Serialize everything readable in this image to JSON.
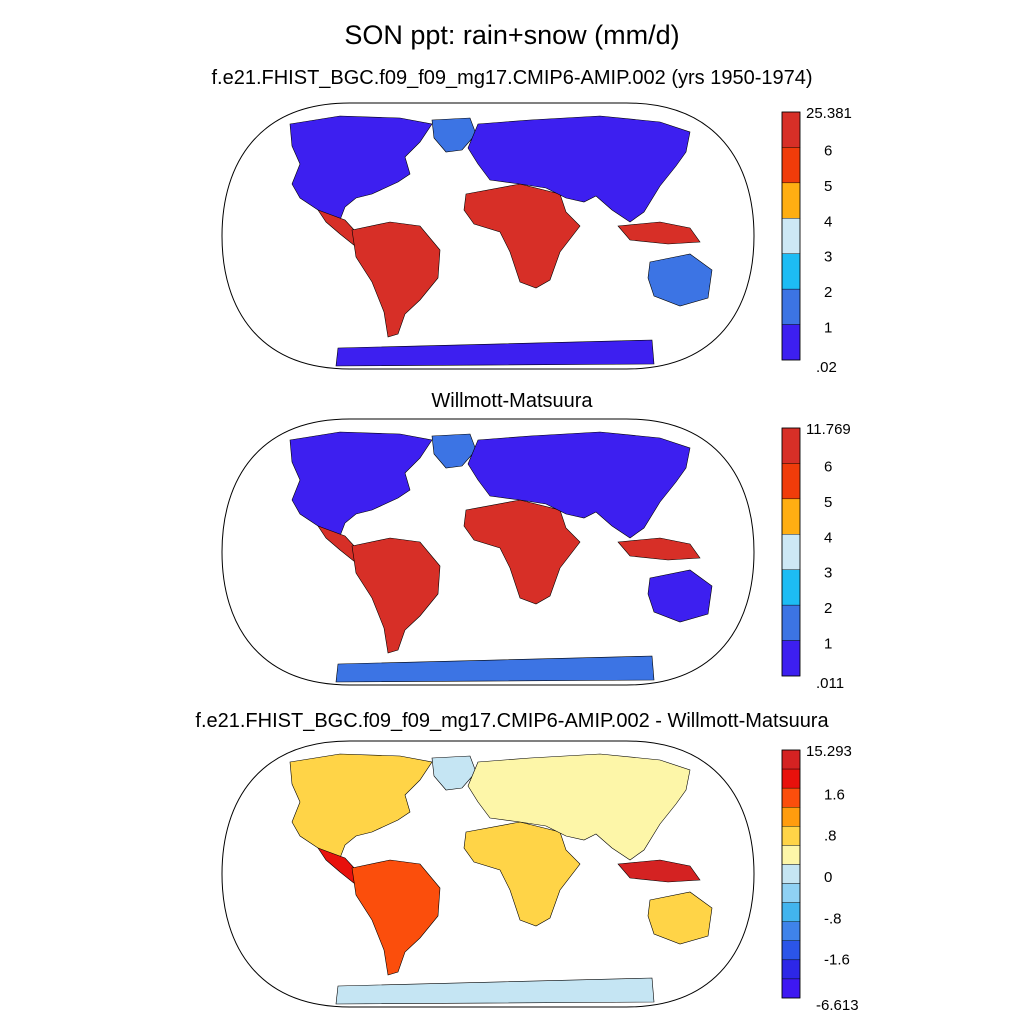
{
  "main_title": "SON ppt: rain+snow (mm/d)",
  "chart_data": [
    {
      "type": "heatmap",
      "title": "f.e21.FHIST_BGC.f09_f09_mg17.CMIP6-AMIP.002 (yrs 1950-1974)",
      "projection": "robinson",
      "legend": "right",
      "colorbar_labels": [
        "25.381",
        "6",
        "5",
        "4",
        "3",
        "2",
        "1",
        ".02"
      ],
      "colors": [
        "#d72f27",
        "#f03c0a",
        "#ffae12",
        "#cde8f5",
        "#1dbcf4",
        "#3c74e4",
        "#3d1ff0"
      ],
      "levels": [
        0.02,
        1,
        2,
        3,
        4,
        5,
        6,
        25.381
      ]
    },
    {
      "type": "heatmap",
      "title": "Willmott-Matsuura",
      "projection": "robinson",
      "legend": "right",
      "colorbar_labels": [
        "11.769",
        "6",
        "5",
        "4",
        "3",
        "2",
        "1",
        ".011"
      ],
      "colors": [
        "#d72f27",
        "#f03c0a",
        "#ffae12",
        "#cde8f5",
        "#1dbcf4",
        "#3c74e4",
        "#3d1ff0"
      ],
      "levels": [
        0.011,
        1,
        2,
        3,
        4,
        5,
        6,
        11.769
      ]
    },
    {
      "type": "heatmap",
      "title": "f.e21.FHIST_BGC.f09_f09_mg17.CMIP6-AMIP.002 - Willmott-Matsuura",
      "projection": "robinson",
      "legend": "right",
      "colorbar_labels": [
        "15.293",
        "1.6",
        ".8",
        "0",
        "-.8",
        "-1.6",
        "-6.613"
      ],
      "colors": [
        "#d42222",
        "#e8110c",
        "#fb4e0c",
        "#ff9c0e",
        "#ffd447",
        "#fdf6a8",
        "#c5e5f3",
        "#8fd1f4",
        "#42b4ee",
        "#3f83ea",
        "#2b55e8",
        "#2d27e7",
        "#3e18f2"
      ]
    }
  ]
}
